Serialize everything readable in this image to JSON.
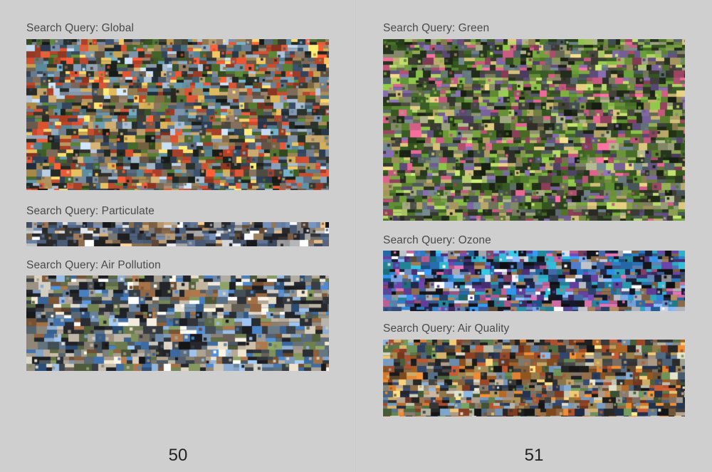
{
  "pages": {
    "left": {
      "number": "50",
      "panels": [
        {
          "id": "global",
          "label": "Search Query: Global",
          "palette": [
            "#6b7f94",
            "#3b3b33",
            "#a58a5a",
            "#c84a2b",
            "#4a6c2d",
            "#2f3f55",
            "#d9b35a",
            "#7d6a58",
            "#9fb0c2",
            "#1f2520",
            "#b7472e",
            "#5b8a9c"
          ]
        },
        {
          "id": "particulate",
          "label": "Search Query: Particulate",
          "palette": [
            "#5a6f8f",
            "#2a2a2a",
            "#8f8f8f",
            "#c2a074",
            "#3e4c63",
            "#d2d4d8",
            "#7a5d44",
            "#1c1d22"
          ]
        },
        {
          "id": "air-pollution",
          "label": "Search Query: Air Pollution",
          "palette": [
            "#7d9bbd",
            "#4e5a63",
            "#9a8f80",
            "#c0b7a6",
            "#2c3036",
            "#6e7f50",
            "#3f6fa8",
            "#d7d2c6",
            "#8a5f3c",
            "#1e1f23"
          ]
        }
      ]
    },
    "right": {
      "number": "51",
      "panels": [
        {
          "id": "green",
          "label": "Search Query: Green",
          "palette": [
            "#4f7a2c",
            "#2f4d1e",
            "#6f9a3a",
            "#8a8f6e",
            "#3b3b33",
            "#b9a86a",
            "#6e5a8f",
            "#c0567a",
            "#1f2a18",
            "#9bb45a",
            "#5a6a6e"
          ]
        },
        {
          "id": "ozone",
          "label": "Search Query: Ozone",
          "palette": [
            "#3d5f9a",
            "#1a1f3a",
            "#6a8fc4",
            "#b05a8a",
            "#2a7ac2",
            "#d0d4dc",
            "#121418",
            "#5a3a8f",
            "#2a9ab0",
            "#8a6a4a"
          ]
        },
        {
          "id": "air-quality",
          "label": "Search Query: Air Quality",
          "palette": [
            "#7a5a3a",
            "#3a3a3a",
            "#c0702a",
            "#5a7a4a",
            "#9a8a7a",
            "#2a3a5a",
            "#d4b26a",
            "#a04a2a",
            "#6a8aaa",
            "#1e1e1e",
            "#b0b0a0"
          ]
        }
      ]
    }
  }
}
